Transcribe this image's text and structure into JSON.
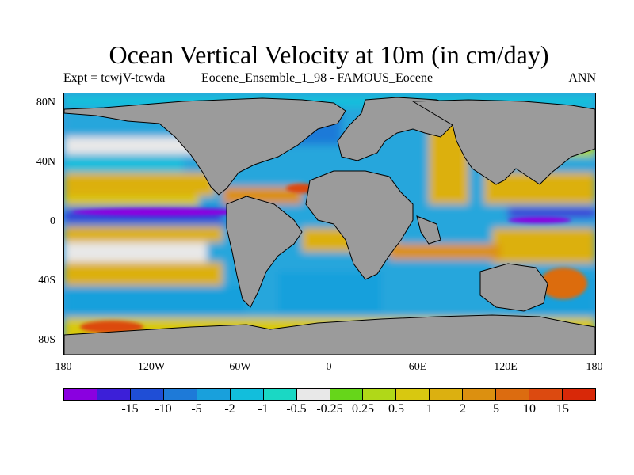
{
  "title": "Ocean Vertical Velocity at 10m (in cm/day)",
  "subtitle_left": "Expt = tcwjV-tcwda",
  "subtitle_center": "Eocene_Ensemble_1_98 - FAMOUS_Eocene",
  "subtitle_right": "ANN",
  "lat_labels": [
    "80N",
    "40N",
    "0",
    "40S",
    "80S"
  ],
  "lon_labels": [
    "180",
    "120W",
    "60W",
    "0",
    "60E",
    "120E",
    "180"
  ],
  "colorbar": {
    "colors": [
      "#8a00e0",
      "#3c1fd8",
      "#1f4ed6",
      "#1e7ad8",
      "#19a0dc",
      "#12bedc",
      "#1ad8c4",
      "#e8e8e8",
      "#66d61a",
      "#b0d818",
      "#d8c810",
      "#dcb010",
      "#dc9010",
      "#dc6c10",
      "#dc4a10",
      "#d82808"
    ],
    "labels": [
      "-15",
      "-10",
      "-5",
      "-2",
      "-1",
      "-0.5",
      "-0.25",
      "0.25",
      "0.5",
      "1",
      "2",
      "5",
      "10",
      "15"
    ]
  },
  "land_color": "#9b9b9b"
}
